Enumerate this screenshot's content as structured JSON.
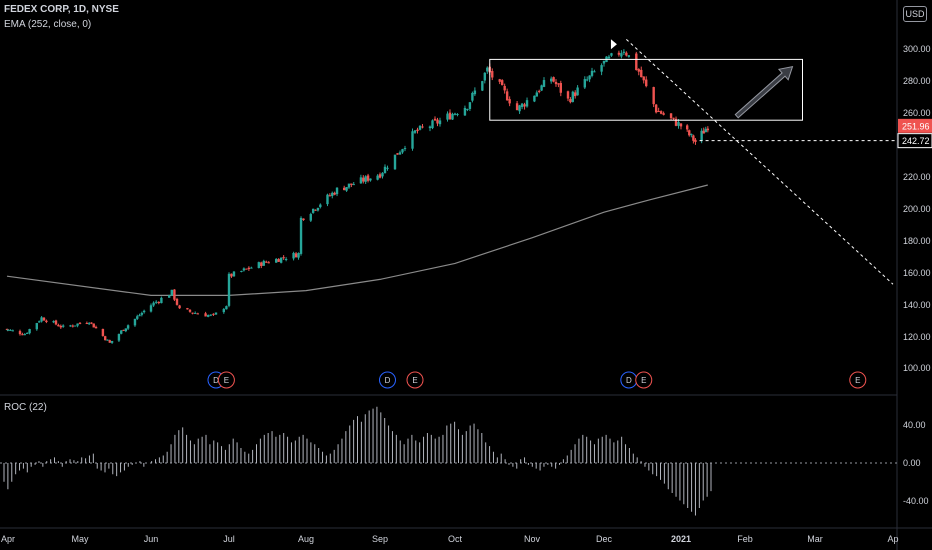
{
  "header": {
    "symbol": "FEDEX CORP",
    "interval": "1D",
    "exchange": "NYSE",
    "indicator": "EMA (252, close, 0)",
    "currency": "USD"
  },
  "colors": {
    "background": "#000000",
    "up": "#26a69a",
    "down": "#ef5350",
    "ema": "#8a8a8a",
    "roc": "#b2b5be",
    "grid": "#1a1a1a",
    "axis_text": "#d1d4dc",
    "earnings_badge": "#ef5350",
    "dividend_badge": "#2962ff"
  },
  "chart_data": [
    {
      "type": "candlestick",
      "title": "FEDEX CORP, 1D, NYSE",
      "x_tick_labels": [
        "Apr",
        "May",
        "Jun",
        "Jul",
        "Aug",
        "Sep",
        "Oct",
        "Nov",
        "Dec",
        "2021",
        "Feb",
        "Mar",
        "Ap"
      ],
      "y_tick_labels": [
        "100.00",
        "120.00",
        "140.00",
        "160.00",
        "180.00",
        "200.00",
        "220.00",
        "240.00",
        "260.00",
        "280.00",
        "300.00"
      ],
      "ylim": [
        92,
        314
      ],
      "price_path": [
        {
          "date": "2020-03-30",
          "close": 125
        },
        {
          "date": "2020-04-08",
          "close": 122
        },
        {
          "date": "2020-04-15",
          "close": 132
        },
        {
          "date": "2020-04-24",
          "close": 126
        },
        {
          "date": "2020-05-05",
          "close": 130
        },
        {
          "date": "2020-05-14",
          "close": 116
        },
        {
          "date": "2020-05-20",
          "close": 125
        },
        {
          "date": "2020-06-01",
          "close": 140
        },
        {
          "date": "2020-06-09",
          "close": 148
        },
        {
          "date": "2020-06-12",
          "close": 137
        },
        {
          "date": "2020-06-25",
          "close": 133
        },
        {
          "date": "2020-06-30",
          "close": 140
        },
        {
          "date": "2020-07-01",
          "close": 158
        },
        {
          "date": "2020-07-14",
          "close": 166
        },
        {
          "date": "2020-07-29",
          "close": 172
        },
        {
          "date": "2020-07-30",
          "close": 194
        },
        {
          "date": "2020-08-14",
          "close": 212
        },
        {
          "date": "2020-09-01",
          "close": 222
        },
        {
          "date": "2020-09-15",
          "close": 248
        },
        {
          "date": "2020-09-25",
          "close": 255
        },
        {
          "date": "2020-10-06",
          "close": 265
        },
        {
          "date": "2020-10-14",
          "close": 287
        },
        {
          "date": "2020-10-26",
          "close": 262
        },
        {
          "date": "2020-11-09",
          "close": 282
        },
        {
          "date": "2020-11-16",
          "close": 268
        },
        {
          "date": "2020-11-30",
          "close": 290
        },
        {
          "date": "2020-12-09",
          "close": 300
        },
        {
          "date": "2020-12-15",
          "close": 286
        },
        {
          "date": "2020-12-22",
          "close": 262
        },
        {
          "date": "2021-01-01",
          "close": 252
        },
        {
          "date": "2021-01-08",
          "close": 242
        },
        {
          "date": "2021-01-14",
          "close": 251.96
        }
      ],
      "ema_252": [
        {
          "date": "2020-03-30",
          "value": 158
        },
        {
          "date": "2020-06-01",
          "value": 146
        },
        {
          "date": "2020-07-01",
          "value": 146
        },
        {
          "date": "2020-08-01",
          "value": 149
        },
        {
          "date": "2020-09-01",
          "value": 156
        },
        {
          "date": "2020-10-01",
          "value": 166
        },
        {
          "date": "2020-11-01",
          "value": 182
        },
        {
          "date": "2020-12-01",
          "value": 198
        },
        {
          "date": "2020-12-20",
          "value": 206
        },
        {
          "date": "2021-01-14",
          "value": 215
        }
      ],
      "price_labels": [
        {
          "text": "251.96",
          "value": 251.96,
          "color": "#ef5350"
        },
        {
          "text": "242.72",
          "value": 242.72,
          "color": "#ffffff"
        }
      ],
      "annotations": {
        "rectangle": {
          "date_start": "2020-10-15",
          "date_end": "2021-02-24",
          "price_low": 255.5,
          "price_high": 293.5
        },
        "trendline": {
          "start": {
            "date": "2020-12-10",
            "price": 306
          },
          "end": {
            "date": "2021-04-01",
            "price": 153
          }
        },
        "horizontal_line": {
          "date_start": "2021-01-10",
          "value": 242.72
        },
        "arrow": {
          "start": {
            "date": "2021-01-28",
            "price": 258
          },
          "end": {
            "date": "2021-02-20",
            "price": 289
          }
        },
        "flag": {
          "date": "2020-12-05",
          "price": 303
        }
      },
      "event_badges": [
        {
          "label": "D",
          "kind": "dividend",
          "date": "2020-06-26"
        },
        {
          "label": "E",
          "kind": "earnings",
          "date": "2020-06-30"
        },
        {
          "label": "D",
          "kind": "dividend",
          "date": "2020-09-04"
        },
        {
          "label": "E",
          "kind": "earnings",
          "date": "2020-09-15"
        },
        {
          "label": "D",
          "kind": "dividend",
          "date": "2020-12-11"
        },
        {
          "label": "E",
          "kind": "earnings",
          "date": "2020-12-17"
        },
        {
          "label": "E",
          "kind": "earnings",
          "date": "2021-03-18"
        }
      ]
    },
    {
      "type": "bar",
      "title": "ROC (22)",
      "y_tick_labels": [
        "40.00",
        "0.00",
        "-40.00"
      ],
      "ylim": [
        -60,
        60
      ],
      "values": [
        -20,
        -28,
        -20,
        -12,
        -8,
        -6,
        -10,
        -4,
        -2,
        2,
        -4,
        2,
        4,
        6,
        2,
        -4,
        2,
        4,
        3,
        2,
        6,
        5,
        8,
        10,
        -6,
        -8,
        -10,
        -6,
        -12,
        -14,
        -10,
        -8,
        -4,
        -2,
        0,
        2,
        -4,
        0,
        2,
        4,
        6,
        8,
        12,
        20,
        30,
        35,
        38,
        30,
        24,
        20,
        26,
        28,
        30,
        20,
        24,
        22,
        18,
        14,
        20,
        26,
        22,
        16,
        12,
        10,
        14,
        20,
        26,
        30,
        32,
        34,
        28,
        30,
        32,
        28,
        22,
        24,
        28,
        30,
        26,
        22,
        20,
        16,
        12,
        8,
        10,
        14,
        20,
        26,
        34,
        40,
        46,
        50,
        44,
        52,
        56,
        58,
        60,
        54,
        48,
        40,
        34,
        30,
        24,
        20,
        26,
        30,
        24,
        22,
        28,
        32,
        30,
        26,
        28,
        30,
        40,
        42,
        44,
        36,
        30,
        34,
        40,
        42,
        36,
        32,
        22,
        18,
        12,
        6,
        10,
        4,
        -2,
        -4,
        -6,
        4,
        6,
        -2,
        -4,
        -6,
        -8,
        -4,
        -2,
        -4,
        -6,
        -2,
        4,
        8,
        14,
        20,
        26,
        30,
        28,
        24,
        20,
        26,
        28,
        30,
        26,
        22,
        24,
        28,
        20,
        16,
        10,
        6,
        2,
        -4,
        -8,
        -12,
        -14,
        -18,
        -22,
        -28,
        -32,
        -36,
        -40,
        -44,
        -48,
        -52,
        -56,
        -48,
        -40,
        -36,
        -30
      ]
    }
  ]
}
